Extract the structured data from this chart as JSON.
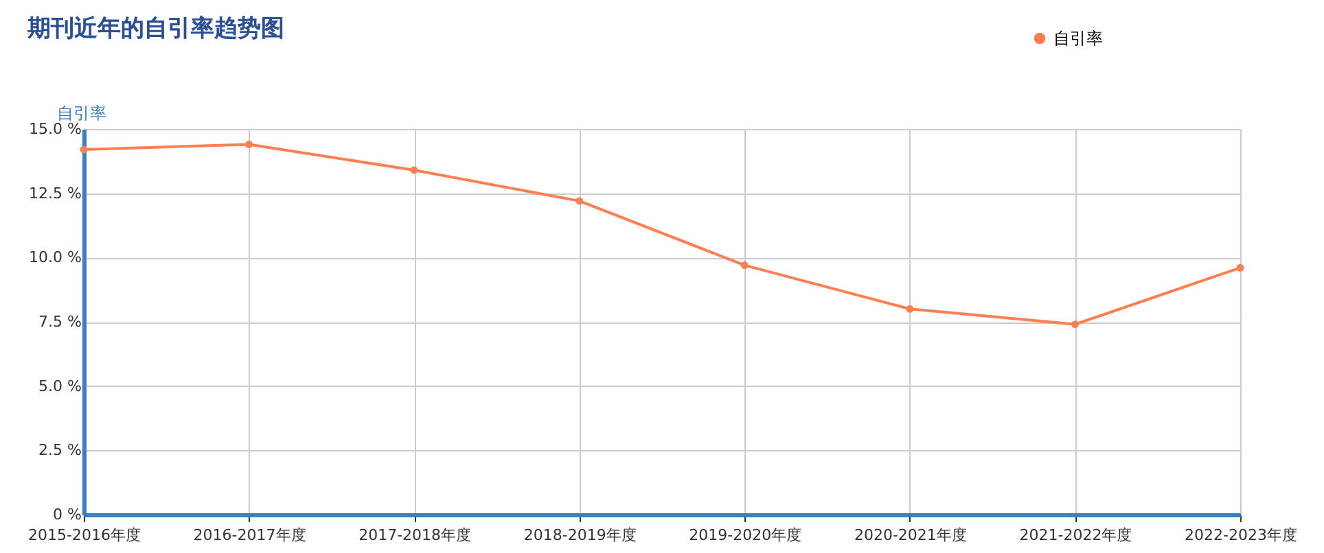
{
  "chart_data": {
    "type": "line",
    "title": "期刊近年的自引率趋势图",
    "ylabel": "自引率",
    "categories": [
      "2015-2016年度",
      "2016-2017年度",
      "2017-2018年度",
      "2018-2019年度",
      "2019-2020年度",
      "2020-2021年度",
      "2021-2022年度",
      "2022-2023年度"
    ],
    "series": [
      {
        "name": "自引率",
        "color": "#ff7f50",
        "values": [
          14.2,
          14.4,
          13.4,
          12.2,
          9.7,
          8.0,
          7.4,
          9.6
        ]
      }
    ],
    "ylim": [
      0,
      15
    ],
    "yticks": [
      {
        "value": 0,
        "label": "0 %"
      },
      {
        "value": 2.5,
        "label": "2.5 %"
      },
      {
        "value": 5,
        "label": "5.0 %"
      },
      {
        "value": 7.5,
        "label": "7.5 %"
      },
      {
        "value": 10,
        "label": "10.0 %"
      },
      {
        "value": 12.5,
        "label": "12.5 %"
      },
      {
        "value": 15,
        "label": "15.0 %"
      }
    ],
    "grid": true,
    "legend": "top right",
    "marker": "circle",
    "line_style": "solid"
  }
}
